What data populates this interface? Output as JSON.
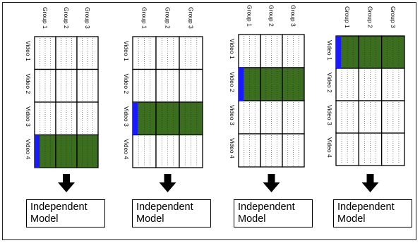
{
  "groups": [
    "Group 1",
    "Group 2",
    "Group 3"
  ],
  "videos": [
    "Video 1",
    "Video 2",
    "Video 3",
    "Video 4"
  ],
  "colors": {
    "highlight": "#3b6e1e",
    "marker": "#1a1aff",
    "grid": "#000000"
  },
  "panels": [
    {
      "held_out_video": 4,
      "model_label": "Independent\nModel"
    },
    {
      "held_out_video": 3,
      "model_label": "Independent\nModel"
    },
    {
      "held_out_video": 2,
      "model_label": "Independent\nModel"
    },
    {
      "held_out_video": 1,
      "model_label": "Independent\nModel"
    }
  ]
}
